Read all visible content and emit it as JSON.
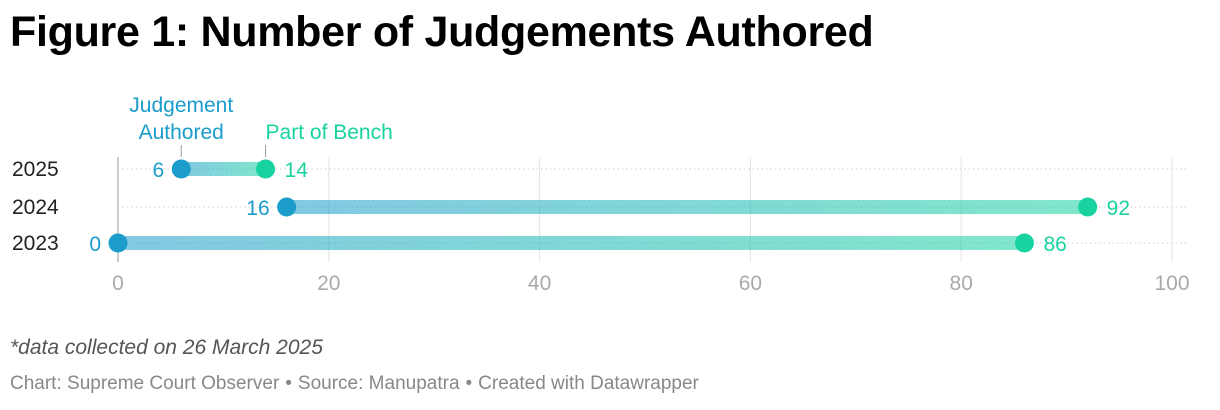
{
  "title": "Figure 1: Number of Judgements Authored",
  "note": "*data collected on 26 March 2025",
  "footer": {
    "chart_by": "Chart: Supreme Court Observer",
    "source": "Source: Manupatra",
    "created": "Created with Datawrapper",
    "separator": "•"
  },
  "colors": {
    "authored": "#1b9ccb",
    "bench": "#18d3a0",
    "axis_text": "#aaaaaa",
    "label_text": "#222222"
  },
  "chart_data": {
    "type": "range-dot",
    "title": "Figure 1: Number of Judgements Authored",
    "categories": [
      "2025",
      "2024",
      "2023"
    ],
    "series": [
      {
        "name": "Judgement Authored",
        "values": [
          6,
          16,
          0
        ]
      },
      {
        "name": "Part of Bench",
        "values": [
          14,
          92,
          86
        ]
      }
    ],
    "legend_labels": [
      [
        "Judgement",
        "Authored"
      ],
      [
        "Part of Bench"
      ]
    ],
    "xlim": [
      0,
      100
    ],
    "xticks": [
      0,
      20,
      40,
      60,
      80,
      100
    ],
    "grid": true,
    "legend_placement": "top, annotated above 2025 row"
  }
}
